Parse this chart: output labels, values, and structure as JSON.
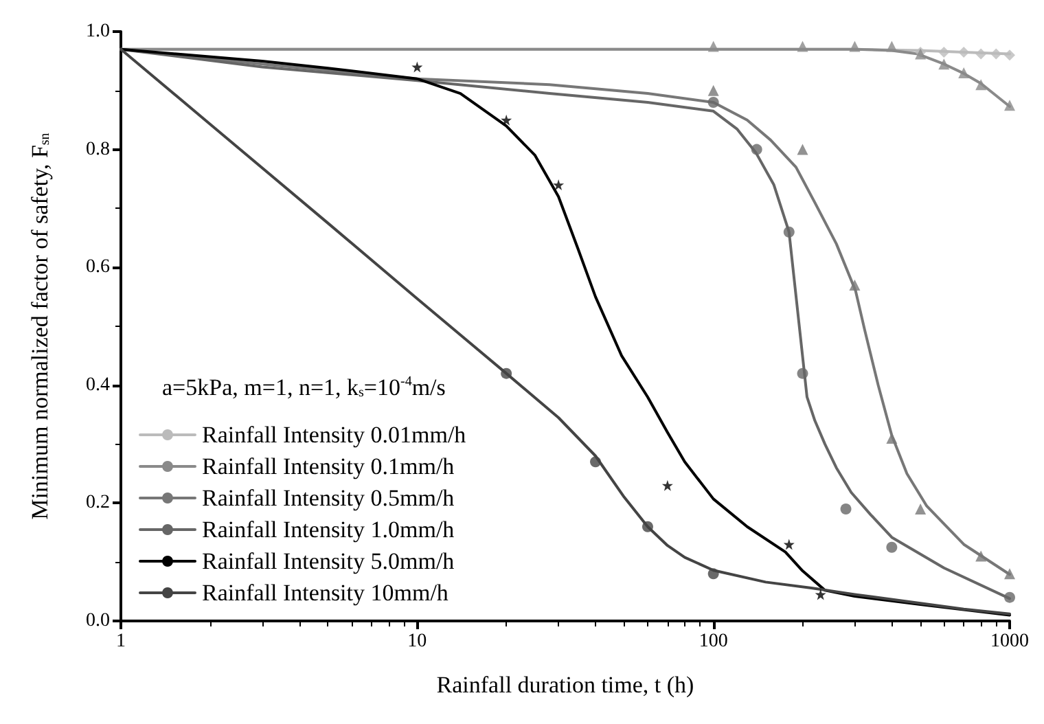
{
  "chart_data": {
    "type": "line",
    "xlabel": "Rainfall duration time, t (h)",
    "ylabel": "Minimum normalized factor of safety, F$_{sn}$",
    "log": "x",
    "xlim": [
      1,
      1000
    ],
    "xticks": [
      1,
      10,
      100,
      1000
    ],
    "ylim": [
      0,
      1
    ],
    "yticks": [
      {
        "value": 0,
        "label": "0.0"
      },
      {
        "value": 0.2,
        "label": "0.2"
      },
      {
        "value": 0.4,
        "label": "0.4"
      },
      {
        "value": 0.6,
        "label": "0.6"
      },
      {
        "value": 0.8,
        "label": "0.8"
      },
      {
        "value": 1,
        "label": "1.0"
      }
    ],
    "legend": "bottom left",
    "annotations": [
      "a=5kPa, m=1, n=1, k$_{s}$=10$^{-4}$m/s"
    ],
    "series": [
      {
        "name": "Rainfall Intensity 0.01mm/h",
        "color": "#bbbbbb",
        "x": [
          1,
          10,
          100,
          300,
          500,
          700,
          1000
        ],
        "values": [
          0.97,
          0.97,
          0.97,
          0.97,
          0.968,
          0.965,
          0.962
        ]
      },
      {
        "name": "Rainfall Intensity 0.1mm/h",
        "color": "#8a8a8a",
        "x": [
          1,
          10,
          100,
          300,
          400,
          490,
          600,
          700,
          800,
          1000
        ],
        "values": [
          0.97,
          0.97,
          0.97,
          0.97,
          0.968,
          0.962,
          0.945,
          0.929,
          0.912,
          0.873
        ]
      },
      {
        "name": "Rainfall Intensity 0.5mm/h",
        "color": "#777777",
        "x": [
          1,
          3,
          10,
          28,
          60,
          100,
          130,
          156,
          190,
          220,
          260,
          302,
          324,
          360,
          400,
          450,
          525,
          700,
          1000
        ],
        "values": [
          0.97,
          0.945,
          0.92,
          0.91,
          0.895,
          0.88,
          0.85,
          0.816,
          0.77,
          0.71,
          0.64,
          0.56,
          0.494,
          0.4,
          0.315,
          0.25,
          0.195,
          0.13,
          0.079
        ]
      },
      {
        "name": "Rainfall Intensity 1.0mm/h",
        "color": "#666666",
        "x": [
          1,
          3,
          10,
          28,
          60,
          100,
          120,
          139,
          160,
          180,
          194,
          207,
          220,
          238,
          260,
          292,
          340,
          400,
          600,
          1000
        ],
        "values": [
          0.97,
          0.94,
          0.917,
          0.895,
          0.88,
          0.865,
          0.835,
          0.795,
          0.74,
          0.66,
          0.51,
          0.38,
          0.34,
          0.3,
          0.26,
          0.218,
          0.18,
          0.142,
          0.09,
          0.038
        ]
      },
      {
        "name": "Rainfall Intensity 5.0mm/h",
        "color": "#000000",
        "x": [
          1,
          3,
          5,
          10,
          14,
          20,
          25,
          30,
          35,
          40,
          49,
          60,
          70,
          80,
          100,
          130,
          175,
          200,
          238,
          300,
          500,
          1000
        ],
        "values": [
          0.97,
          0.95,
          0.938,
          0.92,
          0.895,
          0.84,
          0.79,
          0.72,
          0.63,
          0.55,
          0.45,
          0.38,
          0.32,
          0.27,
          0.207,
          0.16,
          0.117,
          0.085,
          0.052,
          0.042,
          0.028,
          0.01
        ]
      },
      {
        "name": "Rainfall Intensity 10mm/h",
        "color": "#444444",
        "x": [
          1,
          2,
          5,
          10,
          20,
          30,
          40,
          50,
          60,
          70,
          80,
          100,
          150,
          214,
          300,
          500,
          700,
          1000
        ],
        "values": [
          0.97,
          0.843,
          0.675,
          0.547,
          0.42,
          0.345,
          0.28,
          0.21,
          0.16,
          0.128,
          0.108,
          0.086,
          0.066,
          0.056,
          0.045,
          0.03,
          0.02,
          0.012
        ]
      },
      {
        "type": "scatter",
        "color": "#bbbbbb",
        "marker": "diamond",
        "x": [
          500,
          600,
          700,
          800,
          900,
          1000
        ],
        "values": [
          0.965,
          0.965,
          0.965,
          0.962,
          0.962,
          0.96
        ]
      },
      {
        "type": "scatter",
        "color": "#8a8a8a",
        "marker": "triangle",
        "x": [
          100,
          200,
          300,
          400,
          500,
          600,
          700,
          800,
          1000
        ],
        "values": [
          0.975,
          0.975,
          0.975,
          0.975,
          0.962,
          0.945,
          0.93,
          0.91,
          0.875
        ]
      },
      {
        "type": "scatter",
        "color": "#777777",
        "marker": "triangle",
        "x": [
          100,
          200,
          300,
          400,
          500,
          800,
          1000
        ],
        "values": [
          0.9,
          0.8,
          0.57,
          0.31,
          0.19,
          0.11,
          0.08
        ]
      },
      {
        "type": "scatter",
        "color": "#666666",
        "marker": "circle",
        "x": [
          100,
          140,
          180,
          200,
          280,
          400,
          1000
        ],
        "values": [
          0.88,
          0.8,
          0.66,
          0.42,
          0.19,
          0.125,
          0.04
        ]
      },
      {
        "type": "scatter",
        "color": "#000000",
        "marker": "star",
        "x": [
          10,
          20,
          30,
          70,
          180,
          230
        ],
        "values": [
          0.94,
          0.85,
          0.74,
          0.23,
          0.13,
          0.045
        ]
      },
      {
        "type": "scatter",
        "color": "#444444",
        "marker": "circle",
        "x": [
          20,
          40,
          60,
          100
        ],
        "values": [
          0.42,
          0.27,
          0.16,
          0.08
        ]
      }
    ]
  }
}
